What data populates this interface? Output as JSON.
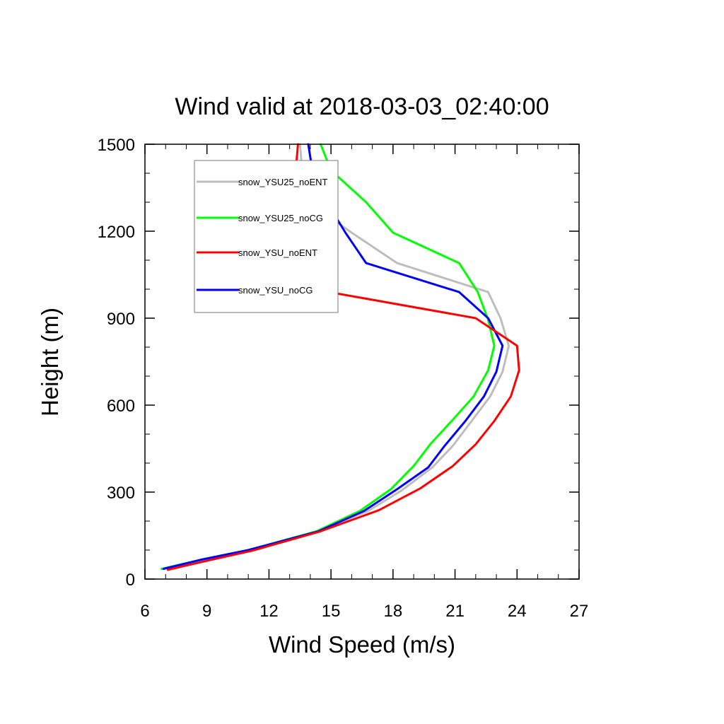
{
  "chart_data": {
    "type": "line",
    "title": "Wind valid at 2018-03-03_02:40:00",
    "xlabel": "Wind Speed (m/s)",
    "ylabel": "Height (m)",
    "xlim": [
      6,
      27
    ],
    "ylim": [
      0,
      1500
    ],
    "x_ticks": [
      6,
      9,
      12,
      15,
      18,
      21,
      24,
      27
    ],
    "y_ticks": [
      0,
      300,
      600,
      900,
      1200,
      1500
    ],
    "legend_position": "top-left",
    "grid": false,
    "series": [
      {
        "name": "snow_YSU25_noENT",
        "color": "#bdbdbd",
        "points": [
          [
            6.9,
            35
          ],
          [
            8.8,
            68
          ],
          [
            11.0,
            100
          ],
          [
            14.4,
            165
          ],
          [
            16.8,
            235
          ],
          [
            18.4,
            305
          ],
          [
            19.9,
            385
          ],
          [
            20.9,
            460
          ],
          [
            21.8,
            545
          ],
          [
            22.7,
            630
          ],
          [
            23.3,
            715
          ],
          [
            23.6,
            805
          ],
          [
            23.2,
            900
          ],
          [
            22.6,
            990
          ],
          [
            18.2,
            1090
          ],
          [
            16.0,
            1195
          ],
          [
            13.9,
            1300
          ],
          [
            13.6,
            1410
          ],
          [
            13.5,
            1500
          ]
        ]
      },
      {
        "name": "snow_YSU25_noCG",
        "color": "#00ff00",
        "points": [
          [
            6.8,
            35
          ],
          [
            8.8,
            68
          ],
          [
            11.0,
            100
          ],
          [
            14.3,
            165
          ],
          [
            16.4,
            235
          ],
          [
            17.9,
            310
          ],
          [
            19.0,
            390
          ],
          [
            19.8,
            465
          ],
          [
            20.9,
            550
          ],
          [
            21.9,
            630
          ],
          [
            22.6,
            720
          ],
          [
            22.9,
            805
          ],
          [
            22.6,
            895
          ],
          [
            22.1,
            990
          ],
          [
            21.2,
            1090
          ],
          [
            18.0,
            1195
          ],
          [
            16.7,
            1300
          ],
          [
            15.0,
            1410
          ],
          [
            14.5,
            1500
          ]
        ]
      },
      {
        "name": "snow_YSU_noENT",
        "color": "#ff0000",
        "points": [
          [
            7.1,
            32
          ],
          [
            9.1,
            65
          ],
          [
            11.2,
            98
          ],
          [
            14.5,
            165
          ],
          [
            17.3,
            237
          ],
          [
            19.3,
            312
          ],
          [
            20.9,
            390
          ],
          [
            22.0,
            465
          ],
          [
            22.9,
            545
          ],
          [
            23.7,
            630
          ],
          [
            24.1,
            720
          ],
          [
            24.0,
            805
          ],
          [
            22.0,
            900
          ],
          [
            14.9,
            990
          ],
          [
            13.5,
            1100
          ],
          [
            13.0,
            1195
          ],
          [
            13.0,
            1300
          ],
          [
            13.3,
            1410
          ],
          [
            13.4,
            1500
          ]
        ]
      },
      {
        "name": "snow_YSU_noCG",
        "color": "#0000ff",
        "points": [
          [
            6.9,
            35
          ],
          [
            8.8,
            68
          ],
          [
            11.0,
            100
          ],
          [
            14.4,
            165
          ],
          [
            16.6,
            235
          ],
          [
            18.2,
            310
          ],
          [
            19.7,
            385
          ],
          [
            20.5,
            460
          ],
          [
            21.5,
            545
          ],
          [
            22.4,
            630
          ],
          [
            23.0,
            715
          ],
          [
            23.3,
            805
          ],
          [
            22.6,
            900
          ],
          [
            21.2,
            990
          ],
          [
            16.7,
            1090
          ],
          [
            15.7,
            1195
          ],
          [
            14.8,
            1300
          ],
          [
            14.1,
            1410
          ],
          [
            13.9,
            1500
          ]
        ]
      }
    ]
  }
}
